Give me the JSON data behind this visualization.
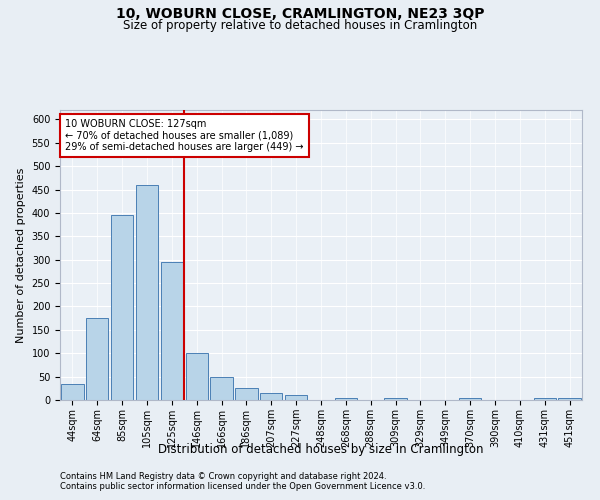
{
  "title1": "10, WOBURN CLOSE, CRAMLINGTON, NE23 3QP",
  "title2": "Size of property relative to detached houses in Cramlington",
  "xlabel": "Distribution of detached houses by size in Cramlington",
  "ylabel": "Number of detached properties",
  "footer1": "Contains HM Land Registry data © Crown copyright and database right 2024.",
  "footer2": "Contains public sector information licensed under the Open Government Licence v3.0.",
  "categories": [
    "44sqm",
    "64sqm",
    "85sqm",
    "105sqm",
    "125sqm",
    "146sqm",
    "166sqm",
    "186sqm",
    "207sqm",
    "227sqm",
    "248sqm",
    "268sqm",
    "288sqm",
    "309sqm",
    "329sqm",
    "349sqm",
    "370sqm",
    "390sqm",
    "410sqm",
    "431sqm",
    "451sqm"
  ],
  "values": [
    35,
    175,
    395,
    460,
    295,
    100,
    50,
    25,
    15,
    10,
    0,
    5,
    0,
    5,
    0,
    0,
    5,
    0,
    0,
    5,
    5
  ],
  "bar_color": "#b8d4e8",
  "bar_edge_color": "#4a7fb5",
  "vline_x_index": 4,
  "vline_color": "#cc0000",
  "annotation_line1": "10 WOBURN CLOSE: 127sqm",
  "annotation_line2": "← 70% of detached houses are smaller (1,089)",
  "annotation_line3": "29% of semi-detached houses are larger (449) →",
  "annotation_box_color": "#cc0000",
  "ylim": [
    0,
    620
  ],
  "yticks": [
    0,
    50,
    100,
    150,
    200,
    250,
    300,
    350,
    400,
    450,
    500,
    550,
    600
  ],
  "bg_color": "#e8eef4",
  "plot_bg_color": "#eaf0f6",
  "title1_fontsize": 10,
  "title2_fontsize": 8.5,
  "xlabel_fontsize": 8.5,
  "ylabel_fontsize": 8,
  "tick_fontsize": 7,
  "annot_fontsize": 7,
  "footer_fontsize": 6
}
